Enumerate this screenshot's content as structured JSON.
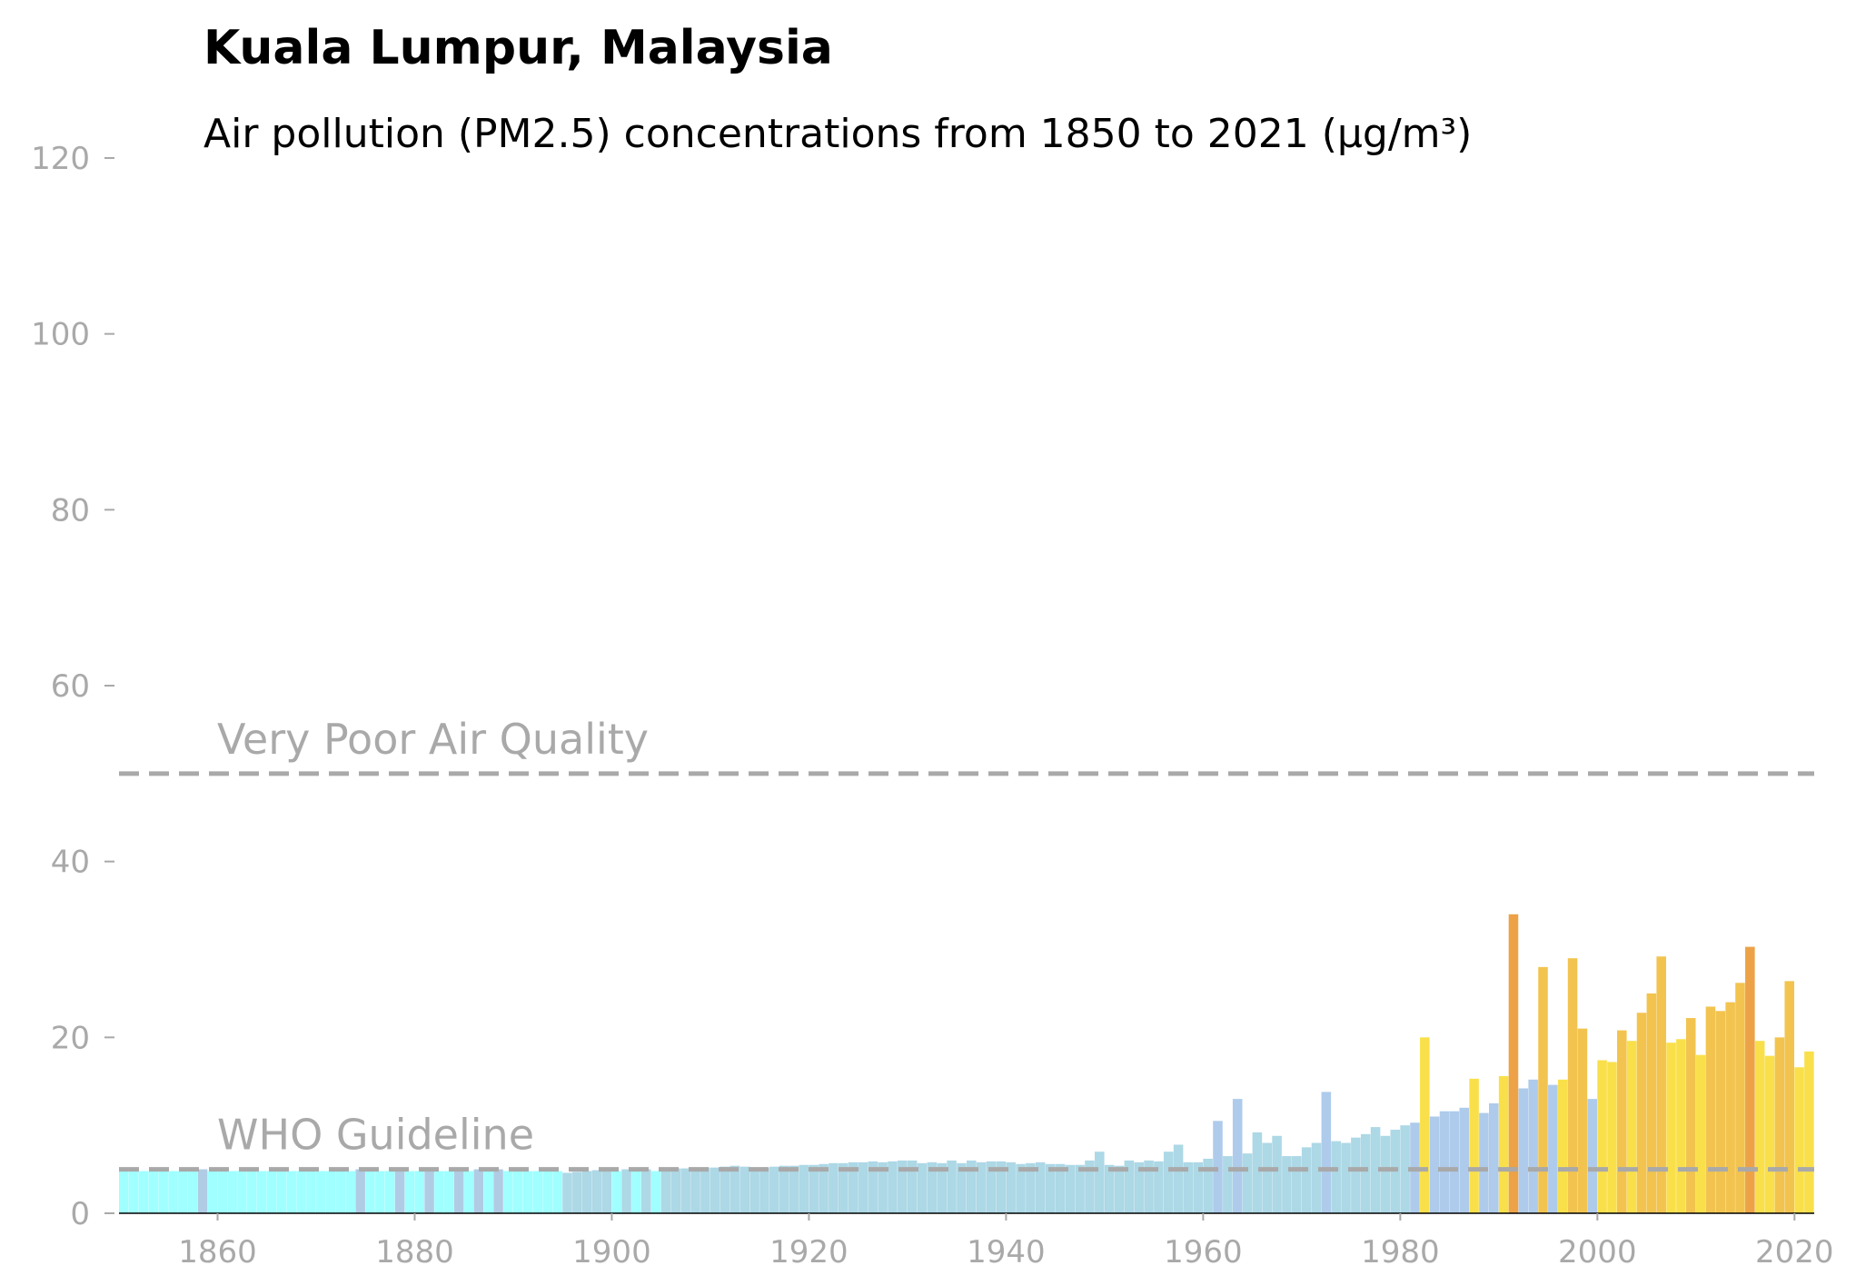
{
  "chart_data": {
    "type": "bar",
    "title": "Kuala Lumpur, Malaysia",
    "subtitle": "Air pollution (PM2.5) concentrations from 1850 to 2021 (µg/m³)",
    "x_start": 1850,
    "values": [
      4.8,
      4.8,
      4.8,
      4.8,
      4.8,
      4.8,
      4.8,
      4.8,
      5.0,
      4.8,
      4.8,
      4.8,
      4.8,
      4.8,
      4.8,
      4.8,
      4.8,
      4.8,
      4.8,
      4.8,
      4.8,
      4.8,
      4.8,
      4.8,
      5.0,
      4.8,
      4.8,
      4.8,
      5.0,
      4.8,
      4.8,
      5.0,
      4.8,
      4.8,
      5.0,
      4.8,
      5.0,
      4.8,
      5.0,
      4.8,
      4.8,
      4.8,
      4.8,
      4.8,
      4.8,
      4.6,
      4.7,
      4.8,
      4.9,
      4.9,
      4.8,
      5.0,
      4.8,
      5.0,
      4.8,
      5.0,
      5.1,
      5.1,
      5.2,
      5.2,
      5.2,
      5.3,
      5.4,
      5.3,
      5.2,
      5.2,
      5.3,
      5.4,
      5.4,
      5.5,
      5.5,
      5.6,
      5.7,
      5.7,
      5.8,
      5.8,
      5.9,
      5.8,
      5.9,
      6.0,
      6.0,
      5.7,
      5.8,
      5.7,
      6.0,
      5.7,
      6.0,
      5.8,
      5.9,
      5.9,
      5.8,
      5.6,
      5.7,
      5.8,
      5.6,
      5.6,
      5.5,
      5.5,
      6.0,
      7.0,
      5.5,
      5.4,
      6.0,
      5.8,
      6.0,
      5.9,
      7.0,
      7.8,
      5.8,
      5.8,
      6.2,
      10.5,
      6.5,
      13.0,
      6.8,
      9.2,
      8.0,
      8.8,
      6.5,
      6.5,
      7.5,
      8.0,
      13.8,
      8.2,
      8.0,
      8.6,
      9.0,
      9.8,
      8.8,
      9.5,
      10.0,
      10.3,
      20.0,
      11.0,
      11.6,
      11.6,
      12.0,
      15.3,
      11.4,
      12.5,
      15.6,
      34.0,
      14.2,
      15.2,
      28.0,
      14.6,
      15.2,
      29.0,
      21.0,
      13.0,
      17.4,
      17.2,
      20.8,
      19.6,
      22.8,
      25.0,
      29.2,
      19.4,
      19.8,
      22.2,
      18.0,
      23.5,
      23.0,
      24.0,
      26.2,
      30.3,
      19.6,
      17.9,
      20.0,
      26.4,
      16.6,
      18.4
    ],
    "colors": [
      "#a0ffff",
      "#a0ffff",
      "#a0ffff",
      "#a0ffff",
      "#a0ffff",
      "#a0ffff",
      "#a0ffff",
      "#a0ffff",
      "#b0cce4",
      "#a0ffff",
      "#a0ffff",
      "#a0ffff",
      "#a0ffff",
      "#a0ffff",
      "#a0ffff",
      "#a0ffff",
      "#a0ffff",
      "#a0ffff",
      "#a0ffff",
      "#a0ffff",
      "#a0ffff",
      "#a0ffff",
      "#a0ffff",
      "#a0ffff",
      "#b0cce4",
      "#a0ffff",
      "#a0ffff",
      "#a0ffff",
      "#b0cce4",
      "#a0ffff",
      "#a0ffff",
      "#b0cce4",
      "#a0ffff",
      "#a0ffff",
      "#b0cce4",
      "#a0ffff",
      "#b0cce4",
      "#a0ffff",
      "#b0cce4",
      "#a0ffff",
      "#a0ffff",
      "#a0ffff",
      "#a0ffff",
      "#a0ffff",
      "#a0ffff",
      "#add8e6",
      "#add8e6",
      "#add8e6",
      "#add8e6",
      "#add8e6",
      "#a0ffff",
      "#add8e6",
      "#a0ffff",
      "#add8e6",
      "#a0ffff",
      "#add8e6",
      "#add8e6",
      "#add8e6",
      "#add8e6",
      "#add8e6",
      "#add8e6",
      "#add8e6",
      "#add8e6",
      "#add8e6",
      "#add8e6",
      "#add8e6",
      "#add8e6",
      "#add8e6",
      "#add8e6",
      "#add8e6",
      "#add8e6",
      "#add8e6",
      "#add8e6",
      "#add8e6",
      "#add8e6",
      "#add8e6",
      "#add8e6",
      "#add8e6",
      "#add8e6",
      "#add8e6",
      "#add8e6",
      "#add8e6",
      "#add8e6",
      "#add8e6",
      "#add8e6",
      "#add8e6",
      "#add8e6",
      "#add8e6",
      "#add8e6",
      "#add8e6",
      "#add8e6",
      "#add8e6",
      "#add8e6",
      "#add8e6",
      "#add8e6",
      "#add8e6",
      "#add8e6",
      "#add8e6",
      "#add8e6",
      "#add8e6",
      "#add8e6",
      "#add8e6",
      "#add8e6",
      "#add8e6",
      "#add8e6",
      "#add8e6",
      "#add8e6",
      "#add8e6",
      "#add8e6",
      "#add8e6",
      "#add8e6",
      "#aecbeb",
      "#add8e6",
      "#aecbeb",
      "#add8e6",
      "#add8e6",
      "#add8e6",
      "#add8e6",
      "#add8e6",
      "#add8e6",
      "#add8e6",
      "#add8e6",
      "#aecbeb",
      "#add8e6",
      "#add8e6",
      "#add8e6",
      "#add8e6",
      "#add8e6",
      "#add8e6",
      "#add8e6",
      "#add8e6",
      "#aecbeb",
      "#f9e04b",
      "#aecbeb",
      "#aecbeb",
      "#aecbeb",
      "#aecbeb",
      "#f9e04b",
      "#aecbeb",
      "#aecbeb",
      "#f9e04b",
      "#eda247",
      "#aecbeb",
      "#aecbeb",
      "#f2c44f",
      "#aecbeb",
      "#f9e04b",
      "#f2c44f",
      "#f2c44f",
      "#aecbeb",
      "#f9e04b",
      "#f9e04b",
      "#f2c44f",
      "#f9e04b",
      "#f2c44f",
      "#f2c44f",
      "#f2c44f",
      "#f9e04b",
      "#f9e04b",
      "#f2c44f",
      "#f9e04b",
      "#f2c44f",
      "#f2c44f",
      "#f2c44f",
      "#f2c44f",
      "#eda247",
      "#f9e04b",
      "#f9e04b",
      "#f2c44f",
      "#f2c44f",
      "#f9e04b",
      "#f9e04b"
    ],
    "xlim": [
      1850,
      2022
    ],
    "xticks": [
      1860,
      1880,
      1900,
      1920,
      1940,
      1960,
      1980,
      2000,
      2020
    ],
    "ylim": [
      0,
      120
    ],
    "yticks": [
      0,
      20,
      40,
      60,
      80,
      100,
      120
    ],
    "reference_lines": [
      {
        "label": "WHO Guideline",
        "value": 5
      },
      {
        "label": "Very Poor Air Quality",
        "value": 50
      }
    ]
  }
}
